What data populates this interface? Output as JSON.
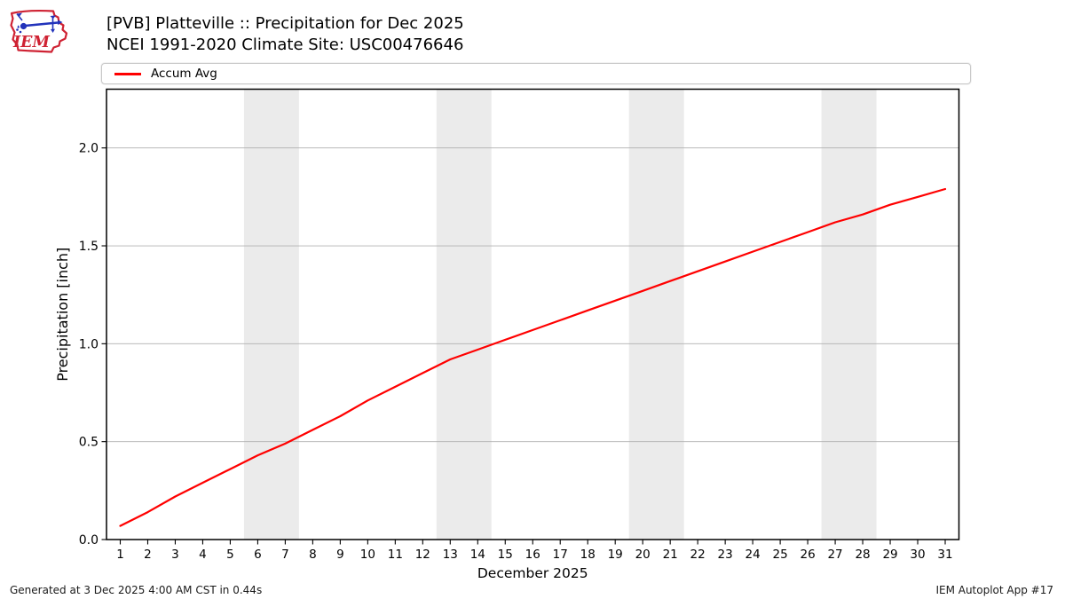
{
  "header": {
    "logo_text": "IEM"
  },
  "legend": {
    "items": [
      {
        "label": "Accum Avg",
        "color": "#ff0000"
      }
    ]
  },
  "footer": {
    "generated": "Generated at 3 Dec 2025 4:00 AM CST in 0.44s",
    "app": "IEM Autoplot App #17"
  },
  "chart_data": {
    "type": "line",
    "title": "[PVB] Platteville :: Precipitation for Dec 2025",
    "subtitle": "NCEI 1991-2020 Climate Site: USC00476646",
    "xlabel": "December 2025",
    "ylabel": "Precipitation [inch]",
    "x": [
      1,
      2,
      3,
      4,
      5,
      6,
      7,
      8,
      9,
      10,
      11,
      12,
      13,
      14,
      15,
      16,
      17,
      18,
      19,
      20,
      21,
      22,
      23,
      24,
      25,
      26,
      27,
      28,
      29,
      30,
      31
    ],
    "series": [
      {
        "name": "Accum Avg",
        "color": "#ff0000",
        "values": [
          0.07,
          0.14,
          0.22,
          0.29,
          0.36,
          0.43,
          0.49,
          0.56,
          0.63,
          0.71,
          0.78,
          0.85,
          0.92,
          0.97,
          1.02,
          1.07,
          1.12,
          1.17,
          1.22,
          1.27,
          1.32,
          1.37,
          1.42,
          1.47,
          1.52,
          1.57,
          1.62,
          1.66,
          1.71,
          1.75,
          1.79
        ]
      }
    ],
    "xlim": [
      0.5,
      31.5
    ],
    "ylim": [
      0,
      2.3
    ],
    "yticks": [
      0.0,
      0.5,
      1.0,
      1.5,
      2.0
    ],
    "ytick_labels": [
      "0.0",
      "0.5",
      "1.0",
      "1.5",
      "2.0"
    ],
    "grid": "y-only",
    "grid_color": "#b0b0b0",
    "weekend_bands": [
      [
        5.5,
        7.5
      ],
      [
        12.5,
        14.5
      ],
      [
        19.5,
        21.5
      ],
      [
        26.5,
        28.5
      ]
    ],
    "band_color": "#ebebeb",
    "legend_position": "top",
    "frame_color": "#000000"
  }
}
